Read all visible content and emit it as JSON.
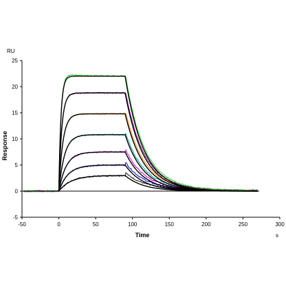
{
  "chart_data": {
    "type": "line",
    "title": "",
    "xlabel": "Time",
    "ylabel": "Response",
    "x_unit": "s",
    "y_unit": "RU",
    "xlim": [
      -50,
      300
    ],
    "ylim": [
      -5,
      25
    ],
    "x_ticks": [
      -50,
      0,
      50,
      100,
      150,
      200,
      250,
      300
    ],
    "y_ticks": [
      -5,
      0,
      5,
      10,
      15,
      20,
      25
    ],
    "x_tick_labels": [
      "-50",
      "0",
      "50",
      "100",
      "150",
      "200",
      "250",
      "300"
    ],
    "y_tick_labels": [
      "-5",
      "0",
      "5",
      "10",
      "15",
      "20",
      "25"
    ],
    "grid": false,
    "injection_start": 0,
    "injection_end": 90,
    "data_end": 270,
    "series": [
      {
        "plateau": 3.0,
        "ka": 0.06,
        "kd": 0.04,
        "color": "#1a1a1a"
      },
      {
        "plateau": 5.0,
        "ka": 0.08,
        "kd": 0.04,
        "color": "#0000cc"
      },
      {
        "plateau": 7.5,
        "ka": 0.1,
        "kd": 0.04,
        "color": "#cc00cc"
      },
      {
        "plateau": 10.8,
        "ka": 0.13,
        "kd": 0.04,
        "color": "#00aaaa"
      },
      {
        "plateau": 14.8,
        "ka": 0.18,
        "kd": 0.04,
        "color": "#ff8800"
      },
      {
        "plateau": 18.8,
        "ka": 0.25,
        "kd": 0.04,
        "color": "#990099"
      },
      {
        "plateau": 22.0,
        "ka": 0.35,
        "kd": 0.04,
        "color": "#22cc22"
      }
    ],
    "fit_color": "#000000"
  }
}
